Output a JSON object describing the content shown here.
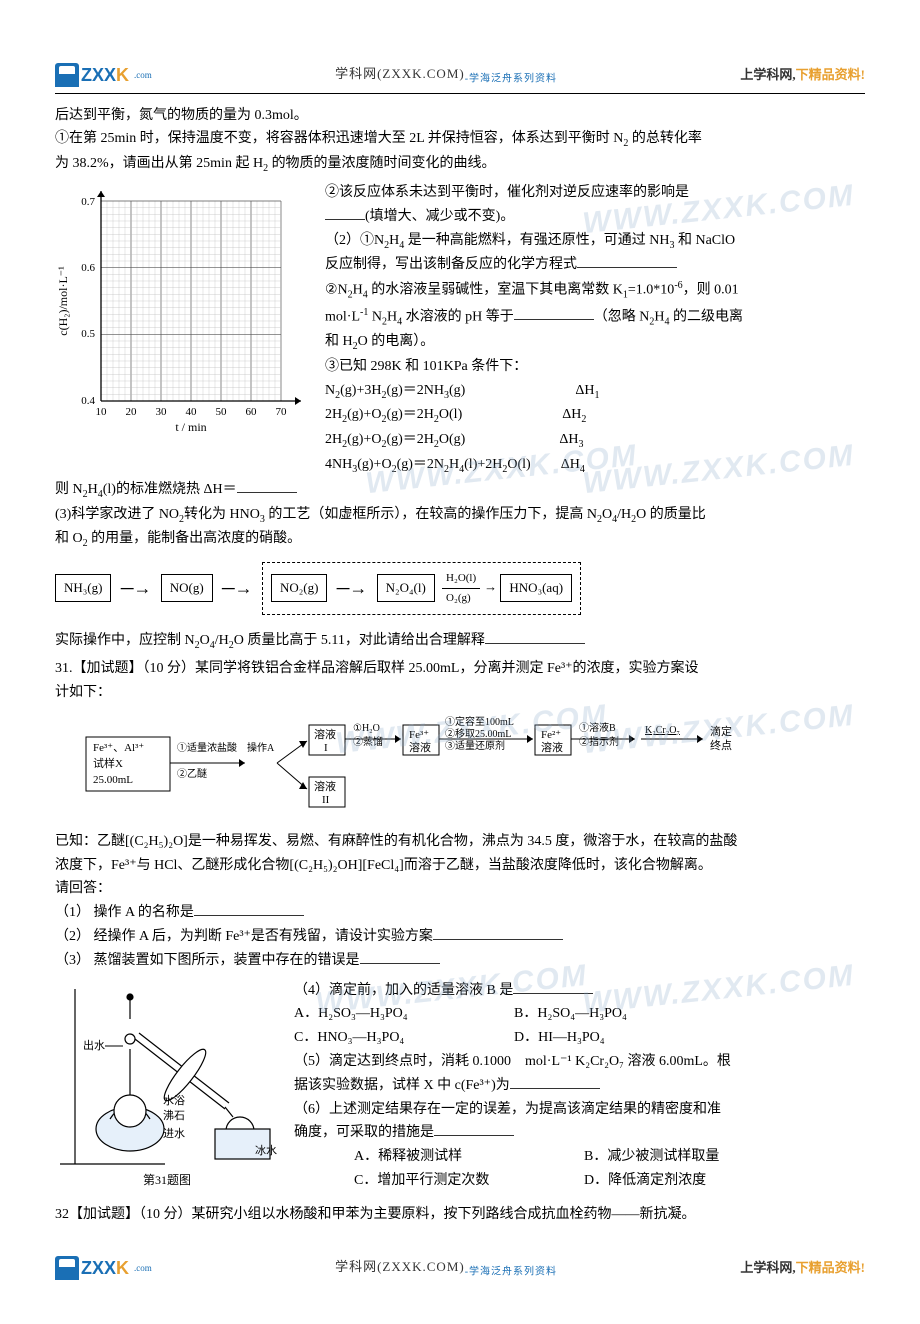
{
  "header": {
    "logo_main": "ZXX",
    "logo_suffix": "K",
    "logo_small": ".com",
    "center_site": "学科网(ZXXK.COM)",
    "center_sub": "-学海泛舟系列资料",
    "right_a": "上学科网,",
    "right_b": "下精品资料!"
  },
  "intro": {
    "line1": "后达到平衡，氮气的物质的量为 0.3mol。",
    "line2a": "①在第 25min 时，保持温度不变，将容器体积迅速增大至 2L 并保持恒容，体系达到平衡时 N",
    "line2b": " 的总转化率",
    "line3": "为 38.2%，请画出从第 25min 起 H",
    "line3b": " 的物质的量浓度随时间变化的曲线。"
  },
  "chart": {
    "x_label": "t / min",
    "y_label": "c(H₂)/mol·L⁻¹",
    "x_ticks": [
      "10",
      "20",
      "30",
      "40",
      "50",
      "60",
      "70"
    ],
    "y_ticks": [
      "0.4",
      "0.5",
      "0.6",
      "0.7"
    ],
    "xlim": [
      10,
      70
    ],
    "ylim": [
      0.4,
      0.7
    ],
    "grid_color": "#999",
    "minor_grid": true
  },
  "rightblock": {
    "r1": "②该反应体系未达到平衡时，催化剂对逆反应速率的影响是",
    "r2": "(填增大、减少或不变)。",
    "r3a": "（2）①N",
    "r3b": "H",
    "r3c": " 是一种高能燃料，有强还原性，可通过 NH",
    "r3d": " 和 NaClO",
    "r4": "反应制得，写出该制备反应的化学方程式",
    "r5a": "②N",
    "r5b": "H",
    "r5c": " 的水溶液呈弱碱性，室温下其电离常数 K",
    "r5d": "=1.0*10",
    "r5e": "，则 0.01",
    "r6a": "mol·L",
    "r6b": " N",
    "r6c": "H",
    "r6d": " 水溶液的 pH 等于",
    "r6e": "（忽略 N",
    "r6f": "H",
    "r6g": " 的二级电离",
    "r7": "和 H",
    "r7b": "O 的电离）。",
    "r8": "③已知 298K 和 101KPa 条件下：",
    "eq1a": "N",
    "eq1b": "(g)+3H",
    "eq1c": "(g)＝2NH",
    "eq1d": "(g)",
    "eq1dh": "ΔH",
    "eq2a": "2H",
    "eq2b": "(g)+O",
    "eq2c": "(g)＝2H",
    "eq2d": "O(l)",
    "eq2dh": "ΔH",
    "eq3a": "2H",
    "eq3b": "(g)+O",
    "eq3c": "(g)＝2H",
    "eq3d": "O(g)",
    "eq3dh": "ΔH",
    "eq4a": "4NH",
    "eq4b": "(g)+O",
    "eq4c": "(g)＝2N",
    "eq4d": "H",
    "eq4e": "(l)+2H",
    "eq4f": "O(l)",
    "eq4dh": "ΔH"
  },
  "afterchart": {
    "l1a": "则 N",
    "l1b": "H",
    "l1c": "(l)的标准燃烧热 ΔH＝",
    "l2a": "(3)科学家改进了 NO",
    "l2b": "转化为 HNO",
    "l2c": " 的工艺（如虚框所示），在较高的操作压力下，提高 N",
    "l2d": "O",
    "l2e": "/H",
    "l2f": "O 的质量比",
    "l3": "和 O",
    "l3b": " 的用量，能制备出高浓度的硝酸。"
  },
  "scheme1": {
    "b1": "NH₃(g)",
    "b2": "NO(g)",
    "b3": "NO₂(g)",
    "b4": "N₂O₄(l)",
    "l1": "H₂O(l)",
    "l2": "O₂(g)",
    "b5": "HNO₃(aq)"
  },
  "aftersch": {
    "p1a": "实际操作中，应控制 N",
    "p1b": "O",
    "p1c": "/H",
    "p1d": "O 质量比高于 5.11，对此请给出合理解释"
  },
  "q31": {
    "head": "31.【加试题】（10 分）某同学将铁铝合金样品溶解后取样 25.00mL，分离并测定 Fe³⁺的浓度，实验方案设",
    "head2": "计如下：",
    "scheme": {
      "box1_l1": "Fe³⁺、Al³⁺",
      "box1_l2": "试样X",
      "box1_l3": "25.00mL",
      "lab1": "①适量浓盐酸",
      "lab2": "②乙醚",
      "lab3": "操作A",
      "sol1": "溶液",
      "solI": "I",
      "sol2": "溶液",
      "solII": "II",
      "s1": "①H₂O",
      "s2": "②蒸馏",
      "fe3": "Fe³⁺",
      "fe3b": "溶液",
      "s3": "①定容至100mL",
      "s4": "②移取25.00mL",
      "s5": "③适量还原剂",
      "fe2": "Fe²⁺",
      "fe2b": "溶液",
      "s6": "①溶液B",
      "s7": "②指示剂",
      "cr": "K₂Cr₂O₇",
      "end": "滴定",
      "end2": "终点"
    },
    "p1": "已知：乙醚[(C₂H₅)₂O]是一种易挥发、易燃、有麻醉性的有机化合物，沸点为 34.5 度，微溶于水，在较高的盐酸",
    "p2": "浓度下，Fe³⁺与 HCl、乙醚形成化合物[(C₂H₅)₂OH][FeCl₄]而溶于乙醚，当盐酸浓度降低时，该化合物解离。",
    "p3": "请回答：",
    "q1": "（1） 操作 A 的名称是",
    "q2": "（2） 经操作 A 后，为判断 Fe³⁺是否有残留，请设计实验方案",
    "q3": "（3） 蒸馏装置如下图所示，装置中存在的错误是",
    "q4": "（4）滴定前，加入的适量溶液 B 是",
    "optA": "A．H₂SO₃—H₃PO₄",
    "optB": "B．H₂SO₄—H₃PO₄",
    "optC": "C．HNO₃—H₃PO₄",
    "optD": "D．HI—H₃PO₄",
    "q5a": "（5）滴定达到终点时，消耗 0.1000　mol·L⁻¹ K₂Cr₂O₇ 溶液 6.00mL。根",
    "q5b": "据该实验数据，试样 X 中 c(Fe³⁺)为",
    "q6a": "（6）上述测定结果存在一定的误差，为提高该滴定结果的精密度和准",
    "q6b": "确度，可采取的措施是",
    "o2A": "A．稀释被测试样",
    "o2B": "B．减少被测试样取量",
    "o2C": "C．增加平行测定次数",
    "o2D": "D．降低滴定剂浓度",
    "figcap": "第31题图",
    "app": {
      "out": "出水",
      "bath": "水浴",
      "stone": "沸石",
      "in": "进水",
      "ice": "冰水"
    }
  },
  "q32": "32【加试题】（10 分）某研究小组以水杨酸和甲苯为主要原料，按下列路线合成抗血栓药物——新抗凝。",
  "watermark": "WWW.ZXXK.COM"
}
